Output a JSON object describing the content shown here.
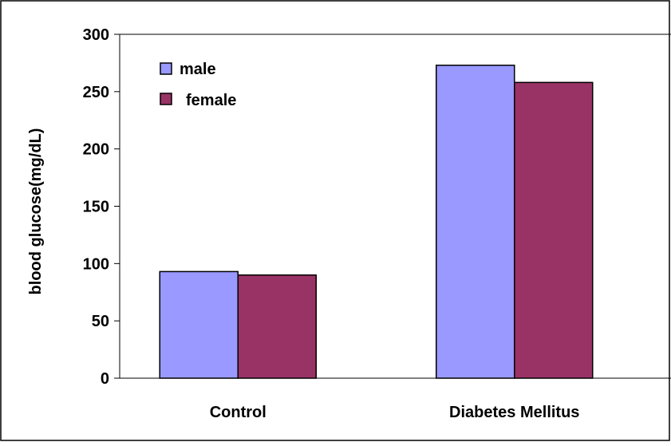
{
  "chart_data": {
    "type": "bar",
    "categories": [
      "Control",
      "Diabetes Mellitus"
    ],
    "series": [
      {
        "name": "male",
        "values": [
          93,
          273
        ],
        "color": "#9999ff"
      },
      {
        "name": "female",
        "values": [
          90,
          258
        ],
        "color": "#993366"
      }
    ],
    "ylabel": "blood glucose(mg/dL)",
    "ylim": [
      0,
      300
    ],
    "yticks": [
      "0",
      "50",
      "100",
      "150",
      "200",
      "250",
      "300"
    ],
    "grid": false,
    "legend_position": "top-left"
  }
}
